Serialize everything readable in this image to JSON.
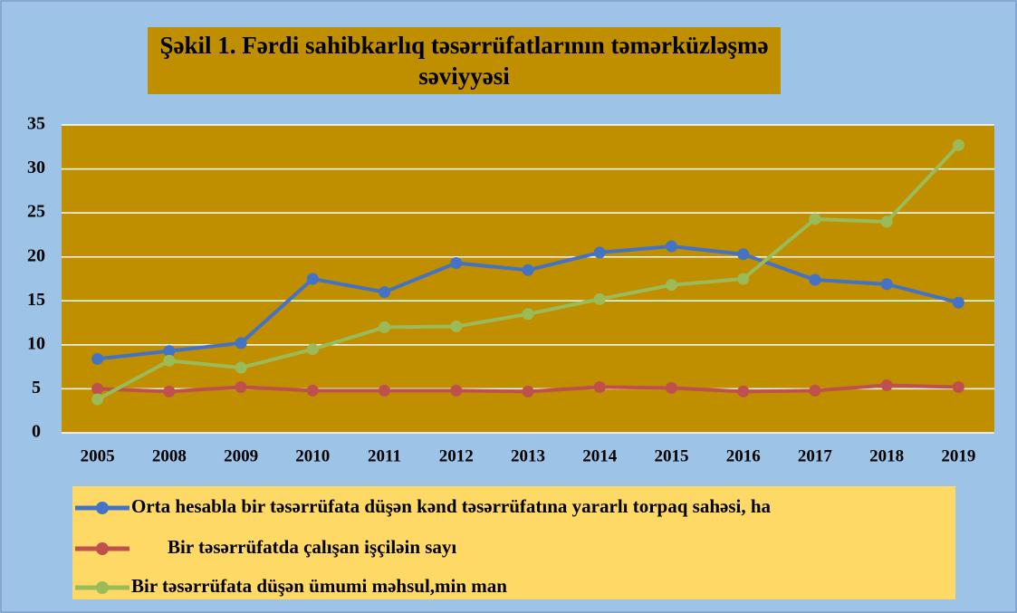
{
  "chart_data": {
    "type": "line",
    "title": "Şəkil 1. Fərdi sahibkarlıq təsərrüfatlarının təmərküzləşmə səviyyəsi",
    "categories": [
      "2005",
      "2008",
      "2009",
      "2010",
      "2011",
      "2012",
      "2013",
      "2014",
      "2015",
      "2016",
      "2017",
      "2018",
      "2019"
    ],
    "series": [
      {
        "name": "Orta hesabla bir təsərrüfata düşən kənd təsərrüfatına yararlı torpaq sahəsi, ha",
        "color": "#4472c4",
        "values": [
          8.4,
          9.3,
          10.2,
          17.5,
          16.0,
          19.3,
          18.5,
          20.5,
          21.2,
          20.3,
          17.4,
          16.9,
          14.8
        ]
      },
      {
        "name": "Bir təsərrüfatda çalışan işçiləin sayı",
        "color": "#c0504d",
        "values": [
          5.0,
          4.7,
          5.2,
          4.8,
          4.8,
          4.8,
          4.7,
          5.2,
          5.1,
          4.7,
          4.8,
          5.4,
          5.2
        ]
      },
      {
        "name": "Bir təsərrüfata düşən ümumi məhsul,min man",
        "color": "#9bbb59",
        "values": [
          3.8,
          8.2,
          7.4,
          9.5,
          12.0,
          12.1,
          13.5,
          15.2,
          16.8,
          17.5,
          24.3,
          24.0,
          32.7
        ]
      }
    ],
    "ylim": [
      0,
      35
    ],
    "yticks": [
      0,
      5,
      10,
      15,
      20,
      25,
      30,
      35
    ],
    "grid": true
  }
}
